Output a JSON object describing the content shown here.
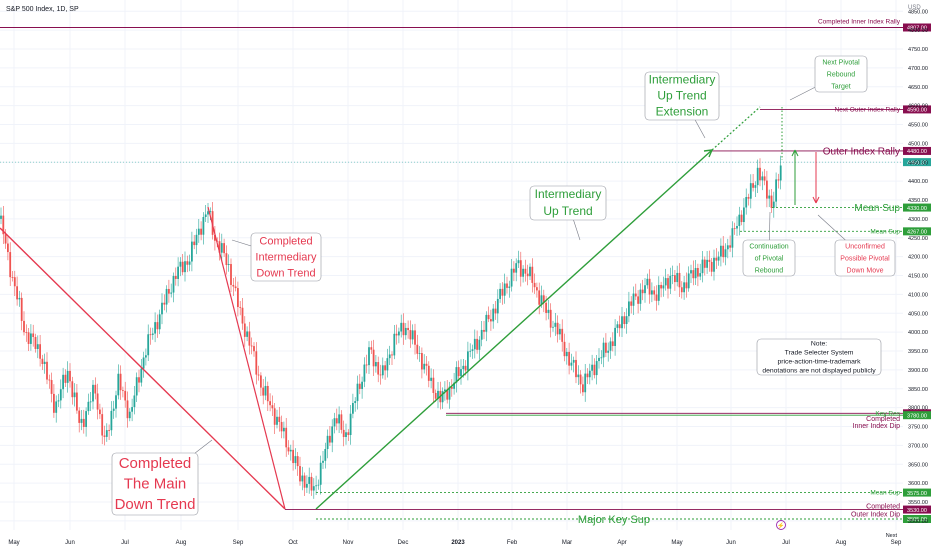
{
  "header": {
    "symbol": "S&P 500 Index, 1D, SP"
  },
  "axis": {
    "currency": "USD"
  },
  "colors": {
    "up": "#26a69a",
    "down": "#ef5350",
    "maroon": "#880e4f",
    "green_ann": "#2e9e3a",
    "red_ann": "#e53950",
    "grid": "#f0f3fa",
    "text": "#131722"
  },
  "chart_data": {
    "type": "candlestick",
    "title": "S&P 500 Index, 1D, SP",
    "ylabel": "USD",
    "ylim": [
      3495,
      4880
    ],
    "y_ticks": [
      3500,
      3550,
      3600,
      3650,
      3700,
      3750,
      3800,
      3850,
      3900,
      3950,
      4000,
      4050,
      4100,
      4150,
      4200,
      4250,
      4300,
      4350,
      4400,
      4450,
      4500,
      4550,
      4600,
      4650,
      4700,
      4750,
      4800,
      4850
    ],
    "x_labels": [
      "May",
      "Jun",
      "Jul",
      "Aug",
      "Sep",
      "Oct",
      "Nov",
      "Dec",
      "2023",
      "Feb",
      "Mar",
      "Apr",
      "May",
      "Jun",
      "Jul",
      "Aug",
      "Sep"
    ],
    "last_price": 4450.37,
    "price_path": [
      [
        0,
        4300
      ],
      [
        12,
        4150
      ],
      [
        25,
        4000
      ],
      [
        40,
        3950
      ],
      [
        55,
        3800
      ],
      [
        68,
        3900
      ],
      [
        80,
        3750
      ],
      [
        95,
        3850
      ],
      [
        105,
        3700
      ],
      [
        118,
        3870
      ],
      [
        130,
        3780
      ],
      [
        145,
        3950
      ],
      [
        160,
        4050
      ],
      [
        175,
        4150
      ],
      [
        190,
        4200
      ],
      [
        200,
        4280
      ],
      [
        208,
        4320
      ],
      [
        215,
        4250
      ],
      [
        228,
        4180
      ],
      [
        240,
        4050
      ],
      [
        252,
        3950
      ],
      [
        262,
        3850
      ],
      [
        275,
        3780
      ],
      [
        288,
        3700
      ],
      [
        300,
        3620
      ],
      [
        314,
        3580
      ],
      [
        325,
        3680
      ],
      [
        335,
        3780
      ],
      [
        345,
        3720
      ],
      [
        358,
        3850
      ],
      [
        370,
        3950
      ],
      [
        382,
        3880
      ],
      [
        394,
        3980
      ],
      [
        405,
        4020
      ],
      [
        418,
        3950
      ],
      [
        430,
        3870
      ],
      [
        440,
        3820
      ],
      [
        452,
        3860
      ],
      [
        465,
        3920
      ],
      [
        478,
        3980
      ],
      [
        492,
        4050
      ],
      [
        505,
        4120
      ],
      [
        518,
        4180
      ],
      [
        532,
        4140
      ],
      [
        545,
        4060
      ],
      [
        558,
        4000
      ],
      [
        570,
        3920
      ],
      [
        583,
        3860
      ],
      [
        596,
        3920
      ],
      [
        608,
        3960
      ],
      [
        620,
        4020
      ],
      [
        632,
        4080
      ],
      [
        645,
        4120
      ],
      [
        658,
        4100
      ],
      [
        670,
        4150
      ],
      [
        682,
        4120
      ],
      [
        695,
        4160
      ],
      [
        708,
        4180
      ],
      [
        720,
        4200
      ],
      [
        732,
        4250
      ],
      [
        742,
        4320
      ],
      [
        752,
        4380
      ],
      [
        758,
        4430
      ],
      [
        765,
        4380
      ],
      [
        772,
        4340
      ],
      [
        778,
        4400
      ],
      [
        782,
        4450
      ]
    ],
    "levels": [
      {
        "label": "Completed Inner Index Rally",
        "value": 4807,
        "tag": "4807.00",
        "color": "maroon"
      },
      {
        "label": "Next Outer Index Rally",
        "value": 4590,
        "tag": "4590.00",
        "color": "maroon"
      },
      {
        "label": "Outer Index Rally",
        "value": 4480,
        "tag": "4480.00",
        "color": "maroon"
      },
      {
        "label": "Mean Sup",
        "value": 4330,
        "tag": "4330.00",
        "color": "green"
      },
      {
        "label": "Mean Sup",
        "value": 4267,
        "tag": "4267.00",
        "color": "green"
      },
      {
        "label": "Key Res",
        "value": 3785,
        "tag": "3785.00",
        "color": "maroon"
      },
      {
        "label": "Completed Inner Index Dip",
        "value": 3780,
        "tag": "3780.00",
        "color": "green"
      },
      {
        "label": "Mean Sup",
        "value": 3575,
        "tag": "3575.00",
        "color": "green"
      },
      {
        "label": "Completed Outer Index Dip",
        "value": 3530,
        "tag": "3530.00",
        "color": "maroon"
      },
      {
        "label": "Major Key Sup",
        "value": 3505,
        "tag": "3505.00",
        "color": "green"
      }
    ]
  },
  "annotations": {
    "completed_main_down": [
      "Completed",
      "The Main",
      "Down Trend"
    ],
    "completed_intermediate_down": [
      "Completed",
      "Intermediary",
      "Down Trend"
    ],
    "intermediate_up": [
      "Intermediary",
      "Up Trend"
    ],
    "intermediate_up_ext": [
      "Intermediary",
      "Up Trend",
      "Extension"
    ],
    "next_pivotal": [
      "Next Pivotal",
      "Rebound",
      "Target"
    ],
    "continuation": [
      "Continuation",
      "of Pivotal",
      "Rebound"
    ],
    "unconfirmed": [
      "Unconfirmed",
      "Possible Pivotal",
      "Down Move"
    ],
    "note": [
      "Note:",
      "Trade Selecter System",
      "price-action-time-trademark",
      "denotations are not displayed publicly"
    ],
    "next_label": "Next"
  }
}
